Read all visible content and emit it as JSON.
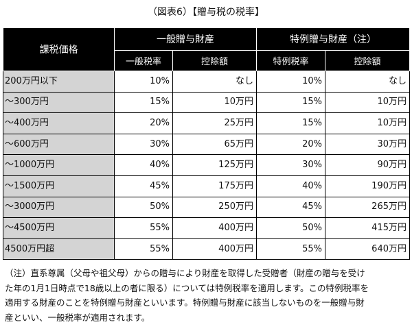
{
  "title": "（図表6）【贈与税の税率】",
  "table": {
    "corner_label": "課税価格",
    "group_general": "一般贈与財産",
    "group_special": "特例贈与財産（注）",
    "col_general_rate": "一般税率",
    "col_general_deduction": "控除額",
    "col_special_rate": "特例税率",
    "col_special_deduction": "控除額",
    "rows": [
      {
        "bracket": "200万円以下",
        "g_rate": "10%",
        "g_ded": "なし",
        "s_rate": "10%",
        "s_ded": "なし"
      },
      {
        "bracket": "～300万円",
        "g_rate": "15%",
        "g_ded": "10万円",
        "s_rate": "15%",
        "s_ded": "10万円"
      },
      {
        "bracket": "～400万円",
        "g_rate": "20%",
        "g_ded": "25万円",
        "s_rate": "15%",
        "s_ded": "10万円"
      },
      {
        "bracket": "～600万円",
        "g_rate": "30%",
        "g_ded": "65万円",
        "s_rate": "20%",
        "s_ded": "30万円"
      },
      {
        "bracket": "～1000万円",
        "g_rate": "40%",
        "g_ded": "125万円",
        "s_rate": "30%",
        "s_ded": "90万円"
      },
      {
        "bracket": "～1500万円",
        "g_rate": "45%",
        "g_ded": "175万円",
        "s_rate": "40%",
        "s_ded": "190万円"
      },
      {
        "bracket": "～3000万円",
        "g_rate": "50%",
        "g_ded": "250万円",
        "s_rate": "45%",
        "s_ded": "265万円"
      },
      {
        "bracket": "～4500万円",
        "g_rate": "55%",
        "g_ded": "400万円",
        "s_rate": "50%",
        "s_ded": "415万円"
      },
      {
        "bracket": "4500万円超",
        "g_rate": "55%",
        "g_ded": "400万円",
        "s_rate": "55%",
        "s_ded": "640万円"
      }
    ]
  },
  "note": {
    "lines": [
      "（注）直系尊属（父母や祖父母）からの贈与により財産を取得した受贈者（財産の贈与を受け",
      "た年の1月1日時点で18歳以上の者に限る）については特例税率を適用します。この特例税率を",
      "適用する財産のことを特例贈与財産といいます。特例贈与財産に該当しないものを一般贈与財",
      "産といい、一般税率が適用されます。"
    ]
  }
}
